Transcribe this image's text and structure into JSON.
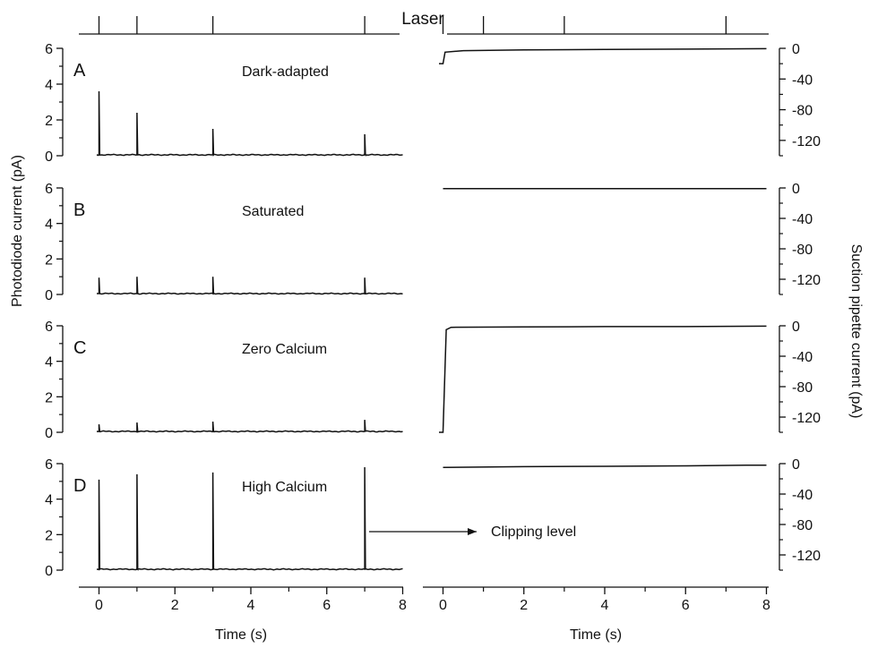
{
  "laser_label": "Laser",
  "left_ylabel": "Photodiode current (pA)",
  "right_ylabel": "Suction pipette current (pA)",
  "xlabel": "Time (s)",
  "annotation": {
    "text": "Clipping level",
    "panel": "C",
    "side": "right",
    "points_to": {
      "x": 0.0,
      "y": -140
    }
  },
  "chart_data": {
    "type": "line",
    "shared_x": {
      "label": "Time (s)",
      "range": [
        -0.5,
        8
      ],
      "ticks": [
        0,
        2,
        4,
        6,
        8
      ],
      "minor_ticks": [
        1,
        3,
        5,
        7
      ]
    },
    "laser_pulses_s": [
      0,
      1,
      3,
      7
    ],
    "left_axis": {
      "label": "Photodiode current (pA)",
      "range": [
        0,
        6
      ],
      "ticks": [
        0,
        2,
        4,
        6
      ],
      "minor_ticks": [
        1,
        3,
        5
      ]
    },
    "right_axis": {
      "label": "Suction pipette current (pA)",
      "range": [
        -140,
        0
      ],
      "ticks": [
        0,
        -40,
        -80,
        -120
      ],
      "minor_ticks": [
        -20,
        -60,
        -100,
        -140
      ]
    },
    "panels": [
      {
        "id": "A",
        "title": "Dark-adapted",
        "photodiode": {
          "baseline": 0.05,
          "spike_times_s": [
            0,
            1,
            3,
            7
          ],
          "spike_peaks_pA": [
            3.6,
            2.4,
            1.5,
            1.2
          ]
        },
        "suction": {
          "points": [
            [
              -0.1,
              -20
            ],
            [
              0.0,
              -20
            ],
            [
              0.05,
              -5
            ],
            [
              0.5,
              -3
            ],
            [
              2,
              -2
            ],
            [
              4,
              -1.5
            ],
            [
              6,
              -1
            ],
            [
              8,
              -0.5
            ]
          ]
        }
      },
      {
        "id": "B",
        "title": "Saturated",
        "photodiode": {
          "baseline": 0.05,
          "spike_times_s": [
            0,
            1,
            3,
            7
          ],
          "spike_peaks_pA": [
            0.95,
            1.0,
            1.0,
            0.95
          ]
        },
        "suction": {
          "points": [
            [
              0,
              -1
            ],
            [
              2,
              -1
            ],
            [
              4,
              -1
            ],
            [
              6,
              -1
            ],
            [
              8,
              -1
            ]
          ]
        }
      },
      {
        "id": "C",
        "title": "Zero Calcium",
        "photodiode": {
          "baseline": 0.05,
          "spike_times_s": [
            0,
            1,
            3,
            7
          ],
          "spike_peaks_pA": [
            0.45,
            0.55,
            0.6,
            0.7
          ]
        },
        "suction": {
          "points": [
            [
              -0.1,
              -140
            ],
            [
              0.0,
              -140
            ],
            [
              0.08,
              -5
            ],
            [
              0.2,
              -2
            ],
            [
              2,
              -1.5
            ],
            [
              4,
              -1
            ],
            [
              6,
              -1
            ],
            [
              8,
              -0.5
            ]
          ]
        }
      },
      {
        "id": "D",
        "title": "High Calcium",
        "photodiode": {
          "baseline": 0.05,
          "spike_times_s": [
            0,
            1,
            3,
            7
          ],
          "spike_peaks_pA": [
            5.1,
            5.4,
            5.5,
            5.8
          ]
        },
        "suction": {
          "points": [
            [
              0,
              -5
            ],
            [
              2,
              -4
            ],
            [
              4,
              -3.5
            ],
            [
              6,
              -3
            ],
            [
              7.5,
              -2
            ],
            [
              8,
              -2
            ]
          ]
        }
      }
    ]
  }
}
